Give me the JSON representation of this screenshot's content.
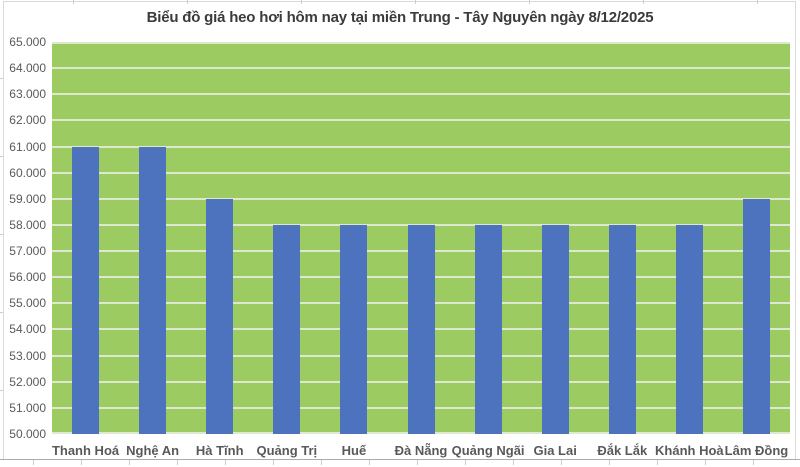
{
  "chart_data": {
    "type": "bar",
    "title": "Biểu đồ giá heo hơi hôm nay tại miền Trung - Tây Nguyên ngày 8/12/2025",
    "categories": [
      "Thanh Hoá",
      "Nghệ An",
      "Hà Tĩnh",
      "Quảng Trị",
      "Huế",
      "Đà Nẵng",
      "Quảng Ngãi",
      "Gia Lai",
      "Đắk Lắk",
      "Khánh Hoà",
      "Lâm Đồng"
    ],
    "values": [
      61000,
      61000,
      59000,
      58000,
      58000,
      58000,
      58000,
      58000,
      58000,
      58000,
      59000
    ],
    "xlabel": "",
    "ylabel": "",
    "ylim": [
      50000,
      65000
    ],
    "y_step": 1000,
    "y_tick_labels": [
      "50.000",
      "51.000",
      "52.000",
      "53.000",
      "54.000",
      "55.000",
      "56.000",
      "57.000",
      "58.000",
      "59.000",
      "60.000",
      "61.000",
      "62.000",
      "63.000",
      "64.000",
      "65.000"
    ],
    "grid": true,
    "legend": "none",
    "colors": {
      "bar": "#4E73BE",
      "plot_background": "#9CCB62",
      "gridline": "#DDE9CE",
      "title_text": "#3B3B3B",
      "axis_text": "#595959",
      "chart_border": "#D9D9D9",
      "sheet_line": "#ABABAB"
    }
  }
}
